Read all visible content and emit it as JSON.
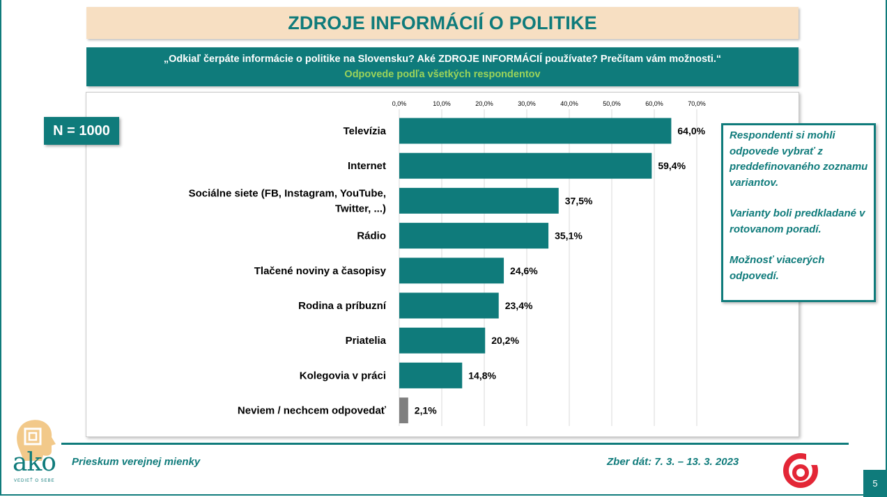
{
  "header": {
    "title": "ZDROJE INFORMÁCIÍ O POLITIKE",
    "question": "„Odkiaľ čerpáte informácie o politike na Slovensku? Aké ZDROJE INFORMÁCIÍ používate? Prečítam vám možnosti.“",
    "subtitle": "Odpovede podľa všetkých respondentov"
  },
  "sample_badge": "N = 1000",
  "note": {
    "p1": "Respondenti si mohli odpovede vybrať z preddefinovaného zoznamu variantov.",
    "p2": "Varianty boli predkladané v rotovanom poradí.",
    "p3": "Možnosť viacerých odpovedí."
  },
  "footer": {
    "left": "Prieskum verejnej mienky",
    "right": "Zber dát: 7. 3. – 13. 3. 2023",
    "page_number": "5",
    "logo_text": "ako",
    "logo_tagline": "VEDIEŤ O SEBE"
  },
  "colors": {
    "teal": "#0f7b7b",
    "gray_bar": "#7f7f7f",
    "title_bg": "#f7dfc2",
    "subtitle_green": "#9bd35a",
    "partner_red": "#e32636"
  },
  "chart_data": {
    "type": "bar",
    "orientation": "horizontal",
    "categories": [
      [
        "Televízia"
      ],
      [
        "Internet"
      ],
      [
        "Sociálne siete (FB, Instagram, YouTube,",
        "Twitter, ...)"
      ],
      [
        "Rádio"
      ],
      [
        "Tlačené noviny a časopisy"
      ],
      [
        "Rodina a príbuzní"
      ],
      [
        "Priatelia"
      ],
      [
        "Kolegovia v práci"
      ],
      [
        "Neviem / nechcem odpovedať"
      ]
    ],
    "values": [
      64.0,
      59.4,
      37.5,
      35.1,
      24.6,
      23.4,
      20.2,
      14.8,
      2.1
    ],
    "value_labels": [
      "64,0%",
      "59,4%",
      "37,5%",
      "35,1%",
      "24,6%",
      "23,4%",
      "20,2%",
      "14,8%",
      "2,1%"
    ],
    "bar_colors": [
      "#0f7b7b",
      "#0f7b7b",
      "#0f7b7b",
      "#0f7b7b",
      "#0f7b7b",
      "#0f7b7b",
      "#0f7b7b",
      "#0f7b7b",
      "#7f7f7f"
    ],
    "x_ticks": [
      0,
      10,
      20,
      30,
      40,
      50,
      60,
      70
    ],
    "x_tick_labels": [
      "0,0%",
      "10,0%",
      "20,0%",
      "30,0%",
      "40,0%",
      "50,0%",
      "60,0%",
      "70,0%"
    ],
    "xlim": [
      0,
      70
    ],
    "grid": true,
    "axis_position": "top"
  }
}
